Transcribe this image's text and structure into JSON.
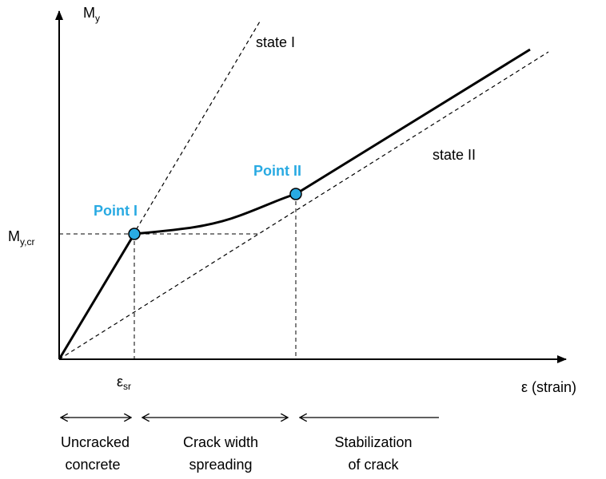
{
  "diagram": {
    "y_axis_label": {
      "main": "M",
      "sub": "y"
    },
    "x_axis_label": "ε (strain)",
    "m_cr_label": {
      "main": "M",
      "sub": "y,cr"
    },
    "eps_label": {
      "main": "ε",
      "sub": "sr"
    },
    "state_I_label": "state I",
    "state_II_label": "state II",
    "point_I_label": "Point I",
    "point_II_label": "Point II",
    "phases": [
      {
        "line1": "Uncracked",
        "line2": "concrete"
      },
      {
        "line1": "Crack width",
        "line2": "spreading"
      },
      {
        "line1": "Stabilization",
        "line2": "of crack"
      }
    ],
    "colors": {
      "point_fill": "#29aae2",
      "point_label": "#29aae2",
      "line": "#000000"
    }
  }
}
